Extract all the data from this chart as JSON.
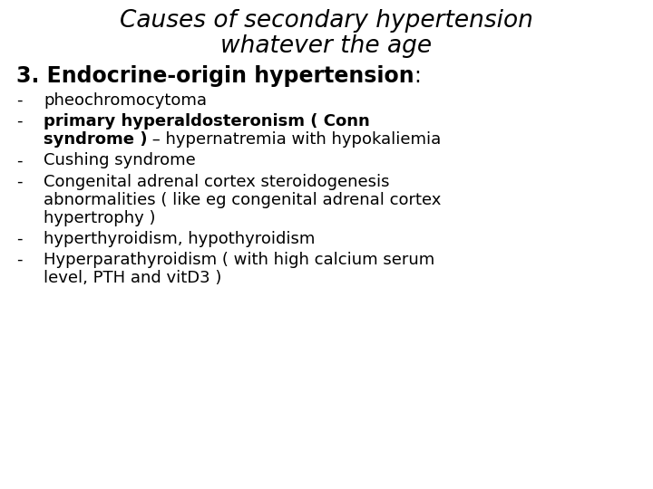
{
  "background_color": "#ffffff",
  "title_line1": "Causes of secondary hypertension",
  "title_line2": "whatever the age",
  "title_fontsize": 19,
  "heading_bold": "3. Endocrine-origin hypertension",
  "heading_colon": ":",
  "heading_fontsize": 17,
  "bullet_fontsize": 13,
  "items": [
    {
      "lines": [
        [
          {
            "text": "pheochromocytoma",
            "bold": false
          }
        ]
      ]
    },
    {
      "lines": [
        [
          {
            "text": "primary hyperaldosteronism ( Conn",
            "bold": true
          }
        ],
        [
          {
            "text": "syndrome )",
            "bold": true
          },
          {
            "text": " – hypernatremia with hypokaliemia",
            "bold": false
          }
        ]
      ]
    },
    {
      "lines": [
        [
          {
            "text": "Cushing syndrome",
            "bold": false
          }
        ]
      ]
    },
    {
      "lines": [
        [
          {
            "text": "Congenital adrenal cortex steroidogenesis",
            "bold": false
          }
        ],
        [
          {
            "text": "abnormalities ( like eg congenital adrenal cortex",
            "bold": false
          }
        ],
        [
          {
            "text": "hypertrophy )",
            "bold": false
          }
        ]
      ]
    },
    {
      "lines": [
        [
          {
            "text": "hyperthyroidism, hypothyroidism",
            "bold": false
          }
        ]
      ]
    },
    {
      "lines": [
        [
          {
            "text": "Hyperparathyroidism ( with high calcium serum",
            "bold": false
          }
        ],
        [
          {
            "text": "level, PTH and vitD3 )",
            "bold": false
          }
        ]
      ]
    }
  ]
}
